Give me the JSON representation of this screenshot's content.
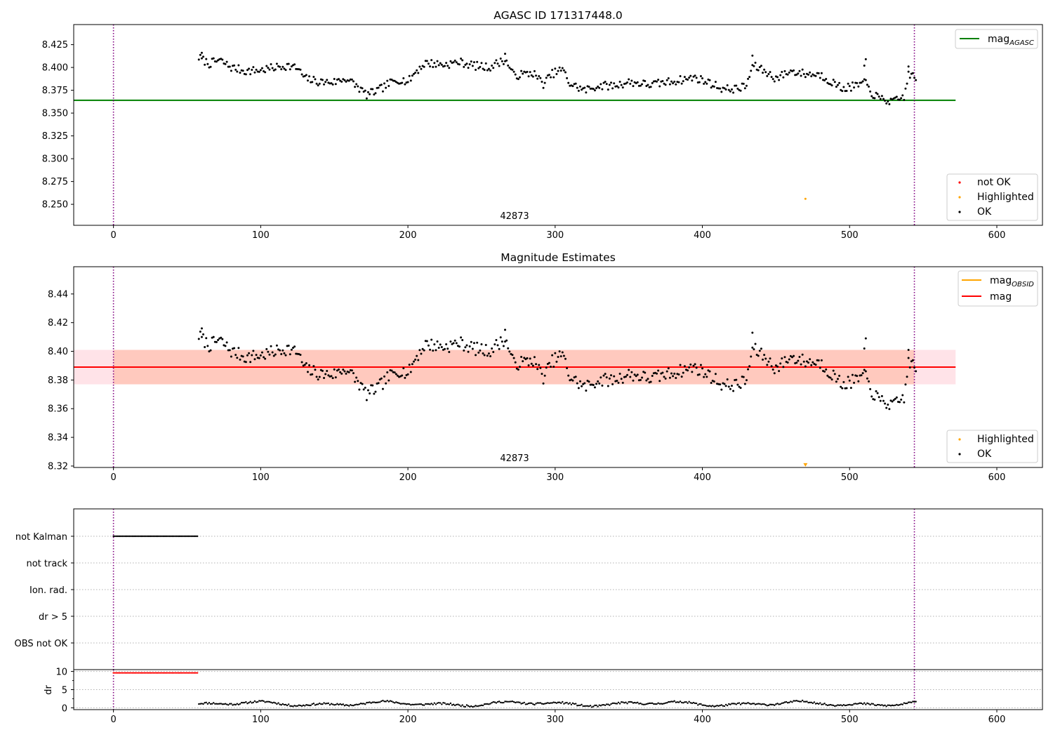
{
  "colors": {
    "ok": "#000000",
    "not_ok": "#ff0000",
    "highlighted": "#ffa500",
    "mag_agasc": "#008000",
    "mag_obsid": "#ffa500",
    "mag": "#ff0000",
    "band_outer": "#ffc0cb",
    "band_inner": "#ffa07a",
    "obs_boundary": "#800080"
  },
  "chart_data": [
    {
      "type": "scatter",
      "title": "AGASC ID 171317448.0",
      "xlabel": "",
      "ylabel": "",
      "xlim": [
        -27,
        631
      ],
      "ylim": [
        8.227,
        8.447
      ],
      "x_ticks": [
        0,
        100,
        200,
        300,
        400,
        500,
        600
      ],
      "x_tick_labels": [
        "0",
        "100",
        "200",
        "300",
        "400",
        "500",
        "600"
      ],
      "y_ticks": [
        8.25,
        8.275,
        8.3,
        8.325,
        8.35,
        8.375,
        8.4,
        8.425
      ],
      "y_tick_labels": [
        "8.250",
        "8.275",
        "8.300",
        "8.325",
        "8.350",
        "8.375",
        "8.400",
        "8.425"
      ],
      "grid": false,
      "observation_boundaries": [
        0,
        544
      ],
      "obsid_label": "42873",
      "obsid_label_x": 272,
      "hline": {
        "name": "mag",
        "sub": "AGASC",
        "y": 8.364,
        "x_range": [
          -27,
          572
        ]
      },
      "series": [
        {
          "name": "not OK",
          "points": []
        },
        {
          "name": "Highlighted",
          "points": [
            [
              470,
              8.256
            ]
          ]
        },
        {
          "name": "OK",
          "start": 58,
          "end": 545,
          "step": 1,
          "profile": "agasc"
        }
      ],
      "legends": [
        {
          "position": "upper right",
          "entries": [
            "mag_AGASC"
          ]
        },
        {
          "position": "lower right",
          "entries": [
            "not OK",
            "Highlighted",
            "OK"
          ]
        }
      ]
    },
    {
      "type": "scatter",
      "title": "Magnitude Estimates",
      "xlabel": "",
      "ylabel": "",
      "xlim": [
        -27,
        631
      ],
      "ylim": [
        8.319,
        8.459
      ],
      "x_ticks": [
        0,
        100,
        200,
        300,
        400,
        500,
        600
      ],
      "x_tick_labels": [
        "0",
        "100",
        "200",
        "300",
        "400",
        "500",
        "600"
      ],
      "y_ticks": [
        8.32,
        8.34,
        8.36,
        8.38,
        8.4,
        8.42,
        8.44
      ],
      "y_tick_labels": [
        "8.32",
        "8.34",
        "8.36",
        "8.38",
        "8.40",
        "8.42",
        "8.44"
      ],
      "grid": false,
      "observation_boundaries": [
        0,
        544
      ],
      "obsid_label": "42873",
      "obsid_label_x": 272,
      "hline_obsid": {
        "name": "mag",
        "sub": "OBSID",
        "y": 8.389
      },
      "hline_mag": {
        "name": "mag",
        "y": 8.389,
        "x_range": [
          -27,
          572
        ]
      },
      "band_outer": [
        8.377,
        8.401
      ],
      "band_inner": [
        8.377,
        8.401
      ],
      "band_inner_x_range": [
        0,
        544
      ],
      "series": [
        {
          "name": "Highlighted",
          "points": [
            [
              470,
              8.3205
            ]
          ],
          "marker": "triangle-down"
        },
        {
          "name": "OK",
          "start": 58,
          "end": 545,
          "step": 1,
          "profile": "agasc"
        }
      ],
      "legends": [
        {
          "position": "upper right",
          "entries": [
            "mag_OBSID",
            "mag"
          ]
        },
        {
          "position": "lower right",
          "entries": [
            "Highlighted",
            "OK"
          ]
        }
      ]
    },
    {
      "type": "scatter",
      "title": "",
      "xlabel": "",
      "ylabel": "",
      "xlim": [
        -27,
        631
      ],
      "categories": [
        "not Kalman",
        "not track",
        "Ion. rad.",
        "dr > 5",
        "OBS not OK"
      ],
      "grid": true,
      "observation_boundaries": [
        0,
        544
      ],
      "series": [
        {
          "name": "not Kalman",
          "start": 0,
          "end": 57,
          "step": 1
        }
      ]
    },
    {
      "type": "line",
      "title": "",
      "xlabel": "",
      "ylabel": "dr",
      "xlim": [
        -27,
        631
      ],
      "ylim": [
        -0.5,
        10.5
      ],
      "y_ticks": [
        0,
        5,
        10
      ],
      "y_tick_labels": [
        "0",
        "5",
        "10"
      ],
      "x_ticks": [
        0,
        100,
        200,
        300,
        400,
        500,
        600
      ],
      "x_tick_labels": [
        "0",
        "100",
        "200",
        "300",
        "400",
        "500",
        "600"
      ],
      "grid": true,
      "observation_boundaries": [
        0,
        544
      ],
      "series": [
        {
          "name": "dr not OK",
          "start": 0,
          "end": 57,
          "step": 1,
          "value": 9.6
        },
        {
          "name": "dr OK",
          "start": 58,
          "end": 545,
          "step": 1,
          "profile": "dr"
        }
      ]
    }
  ]
}
